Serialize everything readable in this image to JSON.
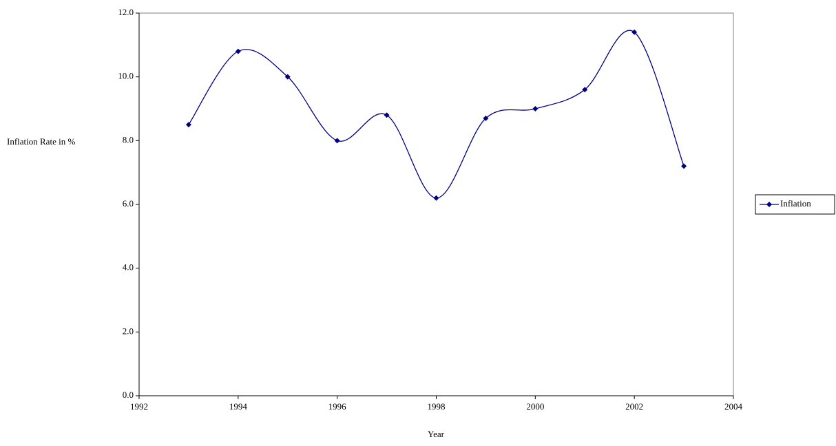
{
  "chart_data": {
    "type": "line",
    "x_label": "Year",
    "y_label": "Inflation Rate in %",
    "x": [
      1993,
      1994,
      1995,
      1996,
      1997,
      1998,
      1999,
      2000,
      2001,
      2002,
      2003
    ],
    "series": [
      {
        "name": "Inflation",
        "color": "#000080",
        "values": [
          8.5,
          10.8,
          10.0,
          8.0,
          8.8,
          6.2,
          8.7,
          9.0,
          9.6,
          11.4,
          7.2
        ]
      }
    ],
    "xlim": [
      1992,
      2004
    ],
    "xticks": [
      1992,
      1994,
      1996,
      1998,
      2000,
      2002,
      2004
    ],
    "ylim": [
      0,
      12
    ],
    "yticks": [
      {
        "value": 0,
        "label": "0.0"
      },
      {
        "value": 2,
        "label": "2.0"
      },
      {
        "value": 4,
        "label": "4.0"
      },
      {
        "value": 6,
        "label": "6.0"
      },
      {
        "value": 8,
        "label": "8.0"
      },
      {
        "value": 10,
        "label": "10.0"
      },
      {
        "value": 12,
        "label": "12.0"
      }
    ],
    "smooth": true,
    "legend": "right"
  }
}
